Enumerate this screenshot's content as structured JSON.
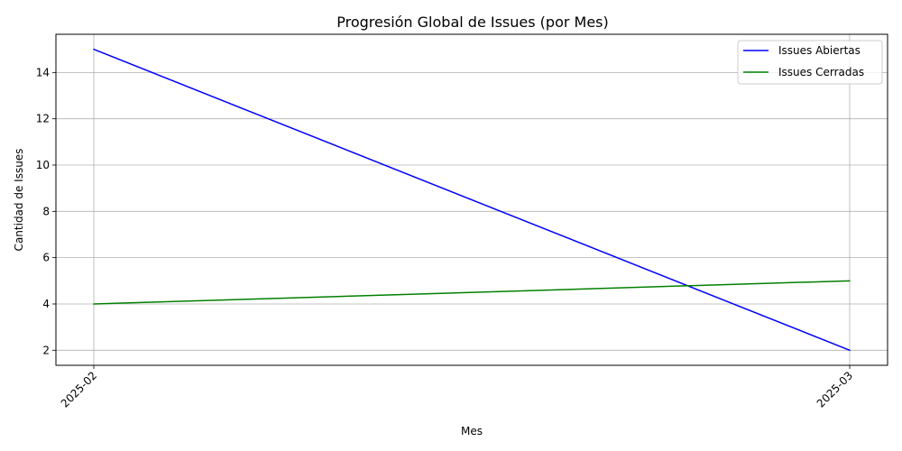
{
  "chart_data": {
    "type": "line",
    "title": "Progresión Global de Issues (por Mes)",
    "xlabel": "Mes",
    "ylabel": "Cantidad de Issues",
    "categories": [
      "2025-02",
      "2025-03"
    ],
    "series": [
      {
        "name": "Issues Abiertas",
        "values": [
          15,
          2
        ],
        "color": "#0000ff"
      },
      {
        "name": "Issues Cerradas",
        "values": [
          4,
          5
        ],
        "color": "#008000"
      }
    ],
    "yticks": [
      2,
      4,
      6,
      8,
      10,
      12,
      14
    ],
    "ylim": [
      1.35,
      15.65
    ],
    "grid": true,
    "legend_position": "top-right",
    "x_tick_rotation": 45
  }
}
